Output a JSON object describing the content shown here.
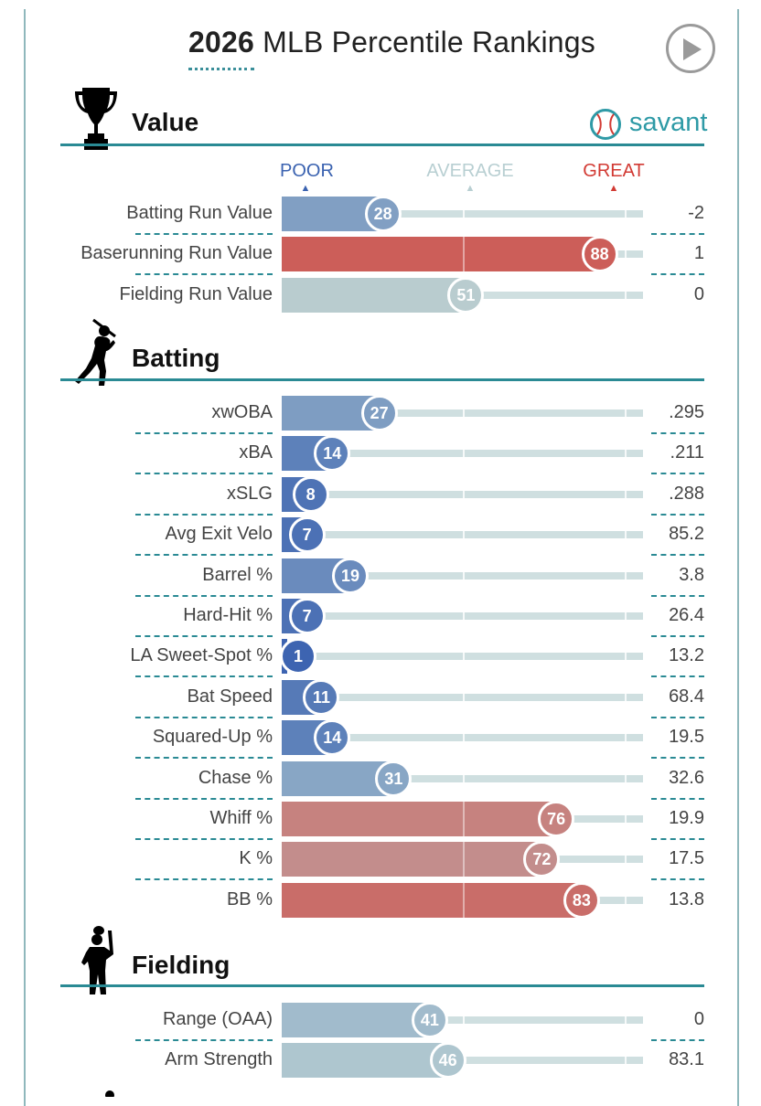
{
  "header": {
    "year": "2026",
    "title_rest": "MLB Percentile Rankings",
    "play_button": "play-icon"
  },
  "brand": {
    "name": "savant",
    "color": "#2e9aa6",
    "icon": "baseball-icon"
  },
  "legend": {
    "poor": "POOR",
    "average": "AVERAGE",
    "great": "GREAT",
    "poor_color": "#3a62b0",
    "average_color": "#b8cfd2",
    "great_color": "#d23a33"
  },
  "sections": [
    {
      "title": "Value",
      "icon": "trophy-icon",
      "rows": [
        {
          "label": "Batting Run Value",
          "percentile": 28,
          "value": "-2"
        },
        {
          "label": "Baserunning Run Value",
          "percentile": 88,
          "value": "1"
        },
        {
          "label": "Fielding Run Value",
          "percentile": 51,
          "value": "0"
        }
      ]
    },
    {
      "title": "Batting",
      "icon": "batter-icon",
      "rows": [
        {
          "label": "xwOBA",
          "percentile": 27,
          "value": ".295"
        },
        {
          "label": "xBA",
          "percentile": 14,
          "value": ".211"
        },
        {
          "label": "xSLG",
          "percentile": 8,
          "value": ".288"
        },
        {
          "label": "Avg Exit Velo",
          "percentile": 7,
          "value": "85.2"
        },
        {
          "label": "Barrel %",
          "percentile": 19,
          "value": "3.8"
        },
        {
          "label": "Hard-Hit %",
          "percentile": 7,
          "value": "26.4"
        },
        {
          "label": "LA Sweet-Spot %",
          "percentile": 1,
          "value": "13.2"
        },
        {
          "label": "Bat Speed",
          "percentile": 11,
          "value": "68.4"
        },
        {
          "label": "Squared-Up %",
          "percentile": 14,
          "value": "19.5"
        },
        {
          "label": "Chase %",
          "percentile": 31,
          "value": "32.6"
        },
        {
          "label": "Whiff %",
          "percentile": 76,
          "value": "19.9"
        },
        {
          "label": "K %",
          "percentile": 72,
          "value": "17.5"
        },
        {
          "label": "BB %",
          "percentile": 83,
          "value": "13.8"
        }
      ]
    },
    {
      "title": "Fielding",
      "icon": "fielder-icon",
      "rows": [
        {
          "label": "Range (OAA)",
          "percentile": 41,
          "value": "0"
        },
        {
          "label": "Arm Strength",
          "percentile": 46,
          "value": "83.1"
        }
      ]
    }
  ]
}
